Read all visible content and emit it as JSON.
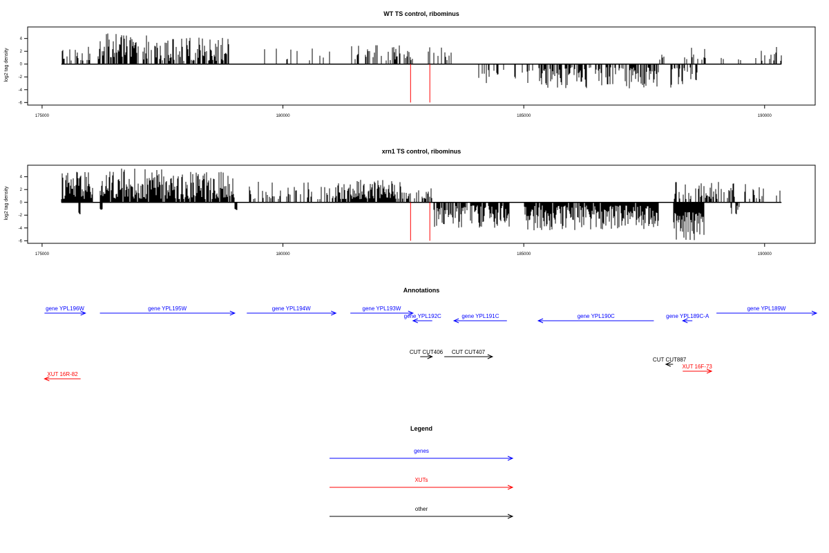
{
  "charts": [
    {
      "title": "WT TS control, ribominus",
      "ylabel": "log2 tag density",
      "xticks": [
        "175000",
        "180000",
        "185000",
        "190000"
      ],
      "yticks": [
        "4",
        "2",
        "0",
        "-2",
        "-4",
        "-6"
      ]
    },
    {
      "title": "xrn1 TS control, ribominus",
      "ylabel": "log2 tag density",
      "xticks": [
        "175000",
        "180000",
        "185000",
        "190000"
      ],
      "yticks": [
        "4",
        "2",
        "0",
        "-2",
        "-4",
        "-6"
      ]
    }
  ],
  "annotations_title": "Annotations",
  "legend_title": "Legend",
  "annotations": [
    {
      "label": "gene YPL196W",
      "start": 175050,
      "end": 175900,
      "strand": "+",
      "kind": "gene",
      "row": 0
    },
    {
      "label": "gene YPL195W",
      "start": 176200,
      "end": 179000,
      "strand": "+",
      "kind": "gene",
      "row": 0
    },
    {
      "label": "gene YPL194W",
      "start": 179250,
      "end": 181100,
      "strand": "+",
      "kind": "gene",
      "row": 0
    },
    {
      "label": "gene YPL193W",
      "start": 181400,
      "end": 182700,
      "strand": "+",
      "kind": "gene",
      "row": 0
    },
    {
      "label": "gene YPL192C",
      "start": 182700,
      "end": 183100,
      "strand": "-",
      "kind": "gene",
      "row": 1
    },
    {
      "label": "gene YPL191C",
      "start": 183550,
      "end": 184650,
      "strand": "-",
      "kind": "gene",
      "row": 1
    },
    {
      "label": "gene YPL190C",
      "start": 185300,
      "end": 187700,
      "strand": "-",
      "kind": "gene",
      "row": 1
    },
    {
      "label": "gene YPL189C-A",
      "start": 188300,
      "end": 188500,
      "strand": "-",
      "kind": "gene",
      "row": 1
    },
    {
      "label": "gene YPL189W",
      "start": 189000,
      "end": 191800,
      "strand": "+",
      "kind": "gene",
      "row": 0
    },
    {
      "label": "CUT CUT406",
      "start": 182850,
      "end": 183100,
      "strand": "+",
      "kind": "other",
      "row": 2
    },
    {
      "label": "CUT CUT407",
      "start": 183350,
      "end": 184350,
      "strand": "+",
      "kind": "other",
      "row": 2
    },
    {
      "label": "CUT CUT887",
      "start": 187950,
      "end": 188100,
      "strand": "-",
      "kind": "other",
      "row": 3
    },
    {
      "label": "XUT 16F-73",
      "start": 188300,
      "end": 188900,
      "strand": "+",
      "kind": "xut",
      "row": 4
    },
    {
      "label": "XUT 16R-82",
      "start": 175050,
      "end": 175800,
      "strand": "-",
      "kind": "xut",
      "row": 5
    }
  ],
  "legend": [
    {
      "label": "genes",
      "color": "#0000ff"
    },
    {
      "label": "XUTs",
      "color": "#ff0000"
    },
    {
      "label": "other",
      "color": "#000000"
    }
  ],
  "colors": {
    "gene": "#0000ff",
    "xut": "#ff0000",
    "other": "#000000",
    "marker": "#ff0000",
    "bars": "#000000"
  },
  "chart_data": [
    {
      "type": "bar",
      "title": "WT TS control, ribominus",
      "xlabel": "",
      "ylabel": "log2 tag density",
      "xlim": [
        174700,
        191050
      ],
      "ylim": [
        -6.4,
        5.8
      ],
      "grid": false,
      "markers": [
        182650,
        183050
      ],
      "x_range": [
        175400,
        190350
      ],
      "segments": [
        {
          "from": 175400,
          "to": 176000,
          "density": 0.45,
          "sign": 1,
          "min": 0.5,
          "max": 2.8
        },
        {
          "from": 176150,
          "to": 177500,
          "density": 0.65,
          "sign": 1,
          "min": 0.5,
          "max": 4.8
        },
        {
          "from": 177500,
          "to": 178900,
          "density": 0.6,
          "sign": 1,
          "min": 0.5,
          "max": 4.2
        },
        {
          "from": 179200,
          "to": 181200,
          "density": 0.12,
          "sign": 1,
          "min": 0.5,
          "max": 3.0
        },
        {
          "from": 181400,
          "to": 182800,
          "density": 0.35,
          "sign": 1,
          "min": 0.5,
          "max": 3.2
        },
        {
          "from": 183000,
          "to": 183600,
          "density": 0.15,
          "sign": 1,
          "min": 0.5,
          "max": 2.8
        },
        {
          "from": 184000,
          "to": 185200,
          "density": 0.2,
          "sign": -1,
          "min": 0.8,
          "max": 3.0
        },
        {
          "from": 185300,
          "to": 187800,
          "density": 0.5,
          "sign": -1,
          "min": 0.5,
          "max": 3.8
        },
        {
          "from": 187800,
          "to": 188000,
          "density": 0.2,
          "sign": 1,
          "min": 0.5,
          "max": 1.6
        },
        {
          "from": 188000,
          "to": 188600,
          "density": 0.4,
          "sign": -1,
          "min": 0.5,
          "max": 4.2
        },
        {
          "from": 188300,
          "to": 188900,
          "density": 0.3,
          "sign": 1,
          "min": 0.5,
          "max": 2.9
        },
        {
          "from": 189000,
          "to": 189600,
          "density": 0.08,
          "sign": 1,
          "min": 0.5,
          "max": 1.0
        },
        {
          "from": 189800,
          "to": 190350,
          "density": 0.25,
          "sign": 1,
          "min": 0.5,
          "max": 2.8
        }
      ]
    },
    {
      "type": "bar",
      "title": "xrn1 TS control, ribominus",
      "xlabel": "",
      "ylabel": "log2 tag density",
      "xlim": [
        174700,
        191050
      ],
      "ylim": [
        -6.4,
        5.8
      ],
      "grid": false,
      "markers": [
        182650,
        183050
      ],
      "x_range": [
        175400,
        190350
      ],
      "segments": [
        {
          "from": 175400,
          "to": 176050,
          "density": 0.95,
          "sign": 1,
          "min": 0.5,
          "max": 4.9
        },
        {
          "from": 175750,
          "to": 175800,
          "density": 1.0,
          "sign": -1,
          "min": 1.5,
          "max": 1.9
        },
        {
          "from": 176200,
          "to": 177500,
          "density": 0.95,
          "sign": 1,
          "min": 0.5,
          "max": 5.3
        },
        {
          "from": 176200,
          "to": 176250,
          "density": 1.0,
          "sign": -1,
          "min": 1.0,
          "max": 1.2
        },
        {
          "from": 177500,
          "to": 179000,
          "density": 0.85,
          "sign": 1,
          "min": 0.5,
          "max": 4.8
        },
        {
          "from": 179000,
          "to": 179050,
          "density": 1.0,
          "sign": -1,
          "min": 1.0,
          "max": 1.2
        },
        {
          "from": 179300,
          "to": 181100,
          "density": 0.3,
          "sign": 1,
          "min": 0.5,
          "max": 3.3
        },
        {
          "from": 181100,
          "to": 182600,
          "density": 0.8,
          "sign": 1,
          "min": 0.5,
          "max": 3.6
        },
        {
          "from": 182600,
          "to": 183100,
          "density": 0.5,
          "sign": 1,
          "min": 0.5,
          "max": 2.3
        },
        {
          "from": 183100,
          "to": 184700,
          "density": 0.8,
          "sign": -1,
          "min": 0.5,
          "max": 4.0
        },
        {
          "from": 185000,
          "to": 187800,
          "density": 0.95,
          "sign": -1,
          "min": 0.5,
          "max": 4.4
        },
        {
          "from": 188100,
          "to": 188750,
          "density": 1.0,
          "sign": -1,
          "min": 1.5,
          "max": 6.0
        },
        {
          "from": 188100,
          "to": 189400,
          "density": 0.4,
          "sign": 1,
          "min": 0.5,
          "max": 3.2
        },
        {
          "from": 189300,
          "to": 189500,
          "density": 0.3,
          "sign": -1,
          "min": 0.5,
          "max": 2.0
        },
        {
          "from": 189500,
          "to": 190350,
          "density": 0.25,
          "sign": 1,
          "min": 0.5,
          "max": 2.9
        }
      ]
    }
  ]
}
